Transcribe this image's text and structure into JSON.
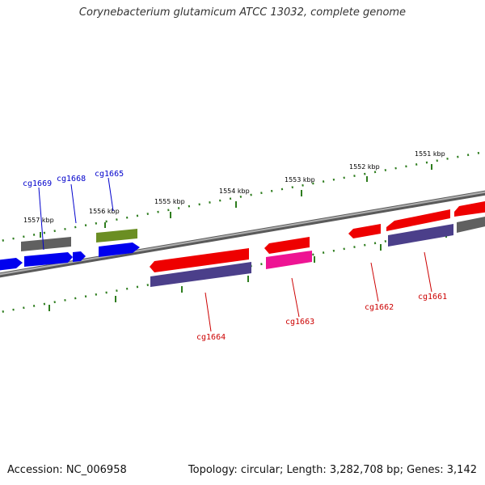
{
  "title": "Corynebacterium glutamicum ATCC 13032, complete genome",
  "footer": {
    "accession": "Accession: NC_006958",
    "summary": "Topology: circular; Length: 3,282,708 bp; Genes: 3,142"
  },
  "colors": {
    "background": "#ffffff",
    "backbone": "#808080",
    "tick": "#2e7d1e",
    "forward_label": "#0000cc",
    "reverse_label": "#cc0000",
    "blue_gene": "#0000ee",
    "red_gene": "#ee0000",
    "gray_gene": "#606060",
    "olive_gene": "#6b8e23",
    "purple_gene": "#4b3f8a",
    "magenta_gene": "#ee1493"
  },
  "kbp_ticks": [
    "1551 kbp",
    "1552 kbp",
    "1553 kbp",
    "1554 kbp",
    "1555 kbp",
    "1556 kbp",
    "1557 kbp"
  ],
  "gene_labels": {
    "forward": [
      "cg1669",
      "cg1668",
      "cg1665"
    ],
    "reverse": [
      "cg1664",
      "cg1663",
      "cg1662",
      "cg1661"
    ]
  }
}
